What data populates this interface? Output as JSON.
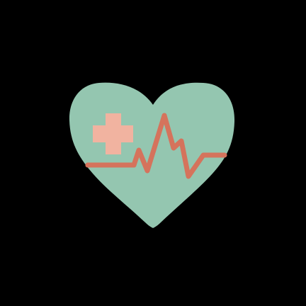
{
  "icon": {
    "name": "heart-pulse-medical-icon",
    "colors": {
      "background": "#000000",
      "heart": "#94c6b0",
      "cross": "#f1b3a0",
      "pulse_line": "#d5735c"
    }
  }
}
